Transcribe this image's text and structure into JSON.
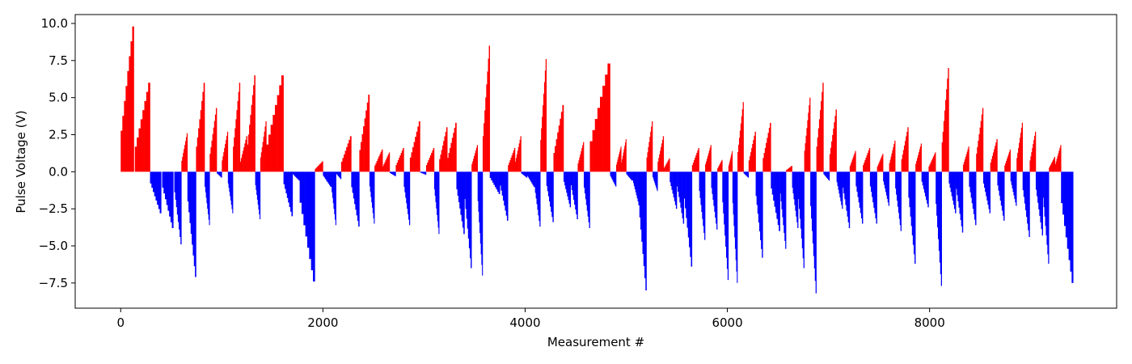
{
  "chart_data": {
    "type": "bar",
    "title": "",
    "xlabel": "Measurement #",
    "ylabel": "Pulse Voltage (V)",
    "xlim": [
      -450,
      9850
    ],
    "ylim": [
      -9.2,
      10.6
    ],
    "xticks": [
      0,
      2000,
      4000,
      6000,
      8000
    ],
    "yticks": [
      -7.5,
      -5.0,
      -2.5,
      0.0,
      2.5,
      5.0,
      7.5,
      10.0
    ],
    "xtick_labels": [
      "0",
      "2000",
      "4000",
      "6000",
      "8000"
    ],
    "ytick_labels": [
      "−7.5",
      "−5.0",
      "−2.5",
      "0.0",
      "2.5",
      "5.0",
      "7.5",
      "10.0"
    ],
    "n_measurements": 9420,
    "series": [
      {
        "name": "positive",
        "color": "#ff0000"
      },
      {
        "name": "negative",
        "color": "#0000ff"
      }
    ],
    "pulses": [
      {
        "start": 0,
        "end": 130,
        "peak": 9.8
      },
      {
        "start": 140,
        "end": 290,
        "peak": 6.0
      },
      {
        "start": 290,
        "end": 400,
        "peak": -2.8
      },
      {
        "start": 410,
        "end": 520,
        "peak": -3.8
      },
      {
        "start": 530,
        "end": 600,
        "peak": -4.9
      },
      {
        "start": 600,
        "end": 660,
        "peak": 2.6
      },
      {
        "start": 660,
        "end": 745,
        "peak": -7.1
      },
      {
        "start": 745,
        "end": 830,
        "peak": 6.0
      },
      {
        "start": 830,
        "end": 880,
        "peak": -3.6
      },
      {
        "start": 880,
        "end": 950,
        "peak": 4.3
      },
      {
        "start": 950,
        "end": 1000,
        "peak": -0.4
      },
      {
        "start": 1000,
        "end": 1060,
        "peak": 2.7
      },
      {
        "start": 1060,
        "end": 1110,
        "peak": -2.8
      },
      {
        "start": 1110,
        "end": 1180,
        "peak": 6.0
      },
      {
        "start": 1180,
        "end": 1250,
        "peak": 2.4
      },
      {
        "start": 1250,
        "end": 1330,
        "peak": 6.5
      },
      {
        "start": 1330,
        "end": 1380,
        "peak": -3.2
      },
      {
        "start": 1380,
        "end": 1440,
        "peak": 3.4
      },
      {
        "start": 1440,
        "end": 1610,
        "peak": 6.5
      },
      {
        "start": 1610,
        "end": 1700,
        "peak": -3.0
      },
      {
        "start": 1700,
        "end": 1770,
        "peak": -0.6
      },
      {
        "start": 1770,
        "end": 1920,
        "peak": -7.4
      },
      {
        "start": 1920,
        "end": 2000,
        "peak": 0.7
      },
      {
        "start": 2000,
        "end": 2080,
        "peak": -1.0
      },
      {
        "start": 2080,
        "end": 2130,
        "peak": -3.6
      },
      {
        "start": 2130,
        "end": 2180,
        "peak": -0.5
      },
      {
        "start": 2180,
        "end": 2280,
        "peak": 2.4
      },
      {
        "start": 2280,
        "end": 2360,
        "peak": -3.7
      },
      {
        "start": 2360,
        "end": 2460,
        "peak": 5.2
      },
      {
        "start": 2460,
        "end": 2510,
        "peak": -3.5
      },
      {
        "start": 2510,
        "end": 2590,
        "peak": 1.5
      },
      {
        "start": 2590,
        "end": 2660,
        "peak": 1.3
      },
      {
        "start": 2660,
        "end": 2720,
        "peak": -0.3
      },
      {
        "start": 2720,
        "end": 2800,
        "peak": 1.6
      },
      {
        "start": 2800,
        "end": 2860,
        "peak": -3.6
      },
      {
        "start": 2860,
        "end": 2960,
        "peak": 3.4
      },
      {
        "start": 2960,
        "end": 3020,
        "peak": -0.2
      },
      {
        "start": 3020,
        "end": 3100,
        "peak": 1.6
      },
      {
        "start": 3100,
        "end": 3150,
        "peak": -4.2
      },
      {
        "start": 3150,
        "end": 3230,
        "peak": 3.0
      },
      {
        "start": 3230,
        "end": 3320,
        "peak": 3.3
      },
      {
        "start": 3320,
        "end": 3400,
        "peak": -4.2
      },
      {
        "start": 3400,
        "end": 3470,
        "peak": -6.5
      },
      {
        "start": 3470,
        "end": 3530,
        "peak": 1.8
      },
      {
        "start": 3530,
        "end": 3580,
        "peak": -7.0
      },
      {
        "start": 3580,
        "end": 3650,
        "peak": 8.5
      },
      {
        "start": 3650,
        "end": 3750,
        "peak": -1.5
      },
      {
        "start": 3750,
        "end": 3830,
        "peak": -3.3
      },
      {
        "start": 3830,
        "end": 3900,
        "peak": 1.6
      },
      {
        "start": 3900,
        "end": 3960,
        "peak": 2.4
      },
      {
        "start": 3960,
        "end": 4020,
        "peak": -0.4
      },
      {
        "start": 4020,
        "end": 4090,
        "peak": -1.0
      },
      {
        "start": 4090,
        "end": 4150,
        "peak": -3.7
      },
      {
        "start": 4150,
        "end": 4210,
        "peak": 7.6
      },
      {
        "start": 4210,
        "end": 4280,
        "peak": -3.4
      },
      {
        "start": 4280,
        "end": 4380,
        "peak": 4.5
      },
      {
        "start": 4380,
        "end": 4450,
        "peak": -2.4
      },
      {
        "start": 4450,
        "end": 4520,
        "peak": -3.2
      },
      {
        "start": 4520,
        "end": 4580,
        "peak": 2.0
      },
      {
        "start": 4580,
        "end": 4640,
        "peak": -3.8
      },
      {
        "start": 4640,
        "end": 4840,
        "peak": 7.3
      },
      {
        "start": 4840,
        "end": 4900,
        "peak": -1.0
      },
      {
        "start": 4900,
        "end": 4950,
        "peak": 1.7
      },
      {
        "start": 4950,
        "end": 5000,
        "peak": 2.2
      },
      {
        "start": 5000,
        "end": 5060,
        "peak": -0.6
      },
      {
        "start": 5060,
        "end": 5120,
        "peak": -2.0
      },
      {
        "start": 5120,
        "end": 5200,
        "peak": -8.0
      },
      {
        "start": 5200,
        "end": 5260,
        "peak": 3.4
      },
      {
        "start": 5260,
        "end": 5310,
        "peak": -1.3
      },
      {
        "start": 5310,
        "end": 5370,
        "peak": 2.4
      },
      {
        "start": 5370,
        "end": 5430,
        "peak": 0.9
      },
      {
        "start": 5430,
        "end": 5500,
        "peak": -2.5
      },
      {
        "start": 5500,
        "end": 5570,
        "peak": -3.5
      },
      {
        "start": 5570,
        "end": 5650,
        "peak": -6.4
      },
      {
        "start": 5650,
        "end": 5720,
        "peak": 1.6
      },
      {
        "start": 5720,
        "end": 5780,
        "peak": -4.6
      },
      {
        "start": 5780,
        "end": 5840,
        "peak": 1.8
      },
      {
        "start": 5840,
        "end": 5900,
        "peak": -3.9
      },
      {
        "start": 5900,
        "end": 5950,
        "peak": 0.8
      },
      {
        "start": 5950,
        "end": 6010,
        "peak": -7.3
      },
      {
        "start": 6010,
        "end": 6050,
        "peak": 1.4
      },
      {
        "start": 6050,
        "end": 6100,
        "peak": -7.5
      },
      {
        "start": 6100,
        "end": 6160,
        "peak": 4.7
      },
      {
        "start": 6160,
        "end": 6210,
        "peak": -0.4
      },
      {
        "start": 6210,
        "end": 6280,
        "peak": 2.7
      },
      {
        "start": 6280,
        "end": 6350,
        "peak": -5.8
      },
      {
        "start": 6350,
        "end": 6430,
        "peak": 3.3
      },
      {
        "start": 6430,
        "end": 6520,
        "peak": -4.0
      },
      {
        "start": 6520,
        "end": 6580,
        "peak": -5.2
      },
      {
        "start": 6580,
        "end": 6640,
        "peak": 0.4
      },
      {
        "start": 6640,
        "end": 6700,
        "peak": -3.8
      },
      {
        "start": 6700,
        "end": 6760,
        "peak": -6.5
      },
      {
        "start": 6760,
        "end": 6820,
        "peak": 5.0
      },
      {
        "start": 6820,
        "end": 6880,
        "peak": -8.2
      },
      {
        "start": 6880,
        "end": 6950,
        "peak": 6.0
      },
      {
        "start": 6950,
        "end": 7010,
        "peak": -0.6
      },
      {
        "start": 7010,
        "end": 7080,
        "peak": 4.2
      },
      {
        "start": 7080,
        "end": 7140,
        "peak": -2.5
      },
      {
        "start": 7140,
        "end": 7210,
        "peak": -3.8
      },
      {
        "start": 7210,
        "end": 7270,
        "peak": 1.4
      },
      {
        "start": 7270,
        "end": 7340,
        "peak": -3.5
      },
      {
        "start": 7340,
        "end": 7410,
        "peak": 1.6
      },
      {
        "start": 7410,
        "end": 7480,
        "peak": -3.5
      },
      {
        "start": 7480,
        "end": 7540,
        "peak": 1.2
      },
      {
        "start": 7540,
        "end": 7600,
        "peak": -2.3
      },
      {
        "start": 7600,
        "end": 7660,
        "peak": 2.1
      },
      {
        "start": 7660,
        "end": 7720,
        "peak": -4.0
      },
      {
        "start": 7720,
        "end": 7790,
        "peak": 3.0
      },
      {
        "start": 7790,
        "end": 7860,
        "peak": -6.2
      },
      {
        "start": 7860,
        "end": 7920,
        "peak": 1.9
      },
      {
        "start": 7920,
        "end": 7990,
        "peak": -2.4
      },
      {
        "start": 7990,
        "end": 8060,
        "peak": 1.3
      },
      {
        "start": 8060,
        "end": 8120,
        "peak": -7.7
      },
      {
        "start": 8120,
        "end": 8190,
        "peak": 7.0
      },
      {
        "start": 8190,
        "end": 8260,
        "peak": -2.8
      },
      {
        "start": 8260,
        "end": 8330,
        "peak": -4.1
      },
      {
        "start": 8330,
        "end": 8390,
        "peak": 1.7
      },
      {
        "start": 8390,
        "end": 8460,
        "peak": -3.6
      },
      {
        "start": 8460,
        "end": 8530,
        "peak": 4.3
      },
      {
        "start": 8530,
        "end": 8600,
        "peak": -2.8
      },
      {
        "start": 8600,
        "end": 8670,
        "peak": 2.2
      },
      {
        "start": 8670,
        "end": 8740,
        "peak": -3.3
      },
      {
        "start": 8740,
        "end": 8800,
        "peak": 1.5
      },
      {
        "start": 8800,
        "end": 8860,
        "peak": -2.3
      },
      {
        "start": 8860,
        "end": 8920,
        "peak": 3.3
      },
      {
        "start": 8920,
        "end": 8990,
        "peak": -4.4
      },
      {
        "start": 8990,
        "end": 9050,
        "peak": 2.7
      },
      {
        "start": 9050,
        "end": 9120,
        "peak": -4.3
      },
      {
        "start": 9120,
        "end": 9180,
        "peak": -6.2
      },
      {
        "start": 9180,
        "end": 9240,
        "peak": 1.0
      },
      {
        "start": 9240,
        "end": 9300,
        "peak": 1.8
      },
      {
        "start": 9300,
        "end": 9420,
        "peak": -7.5
      }
    ]
  }
}
